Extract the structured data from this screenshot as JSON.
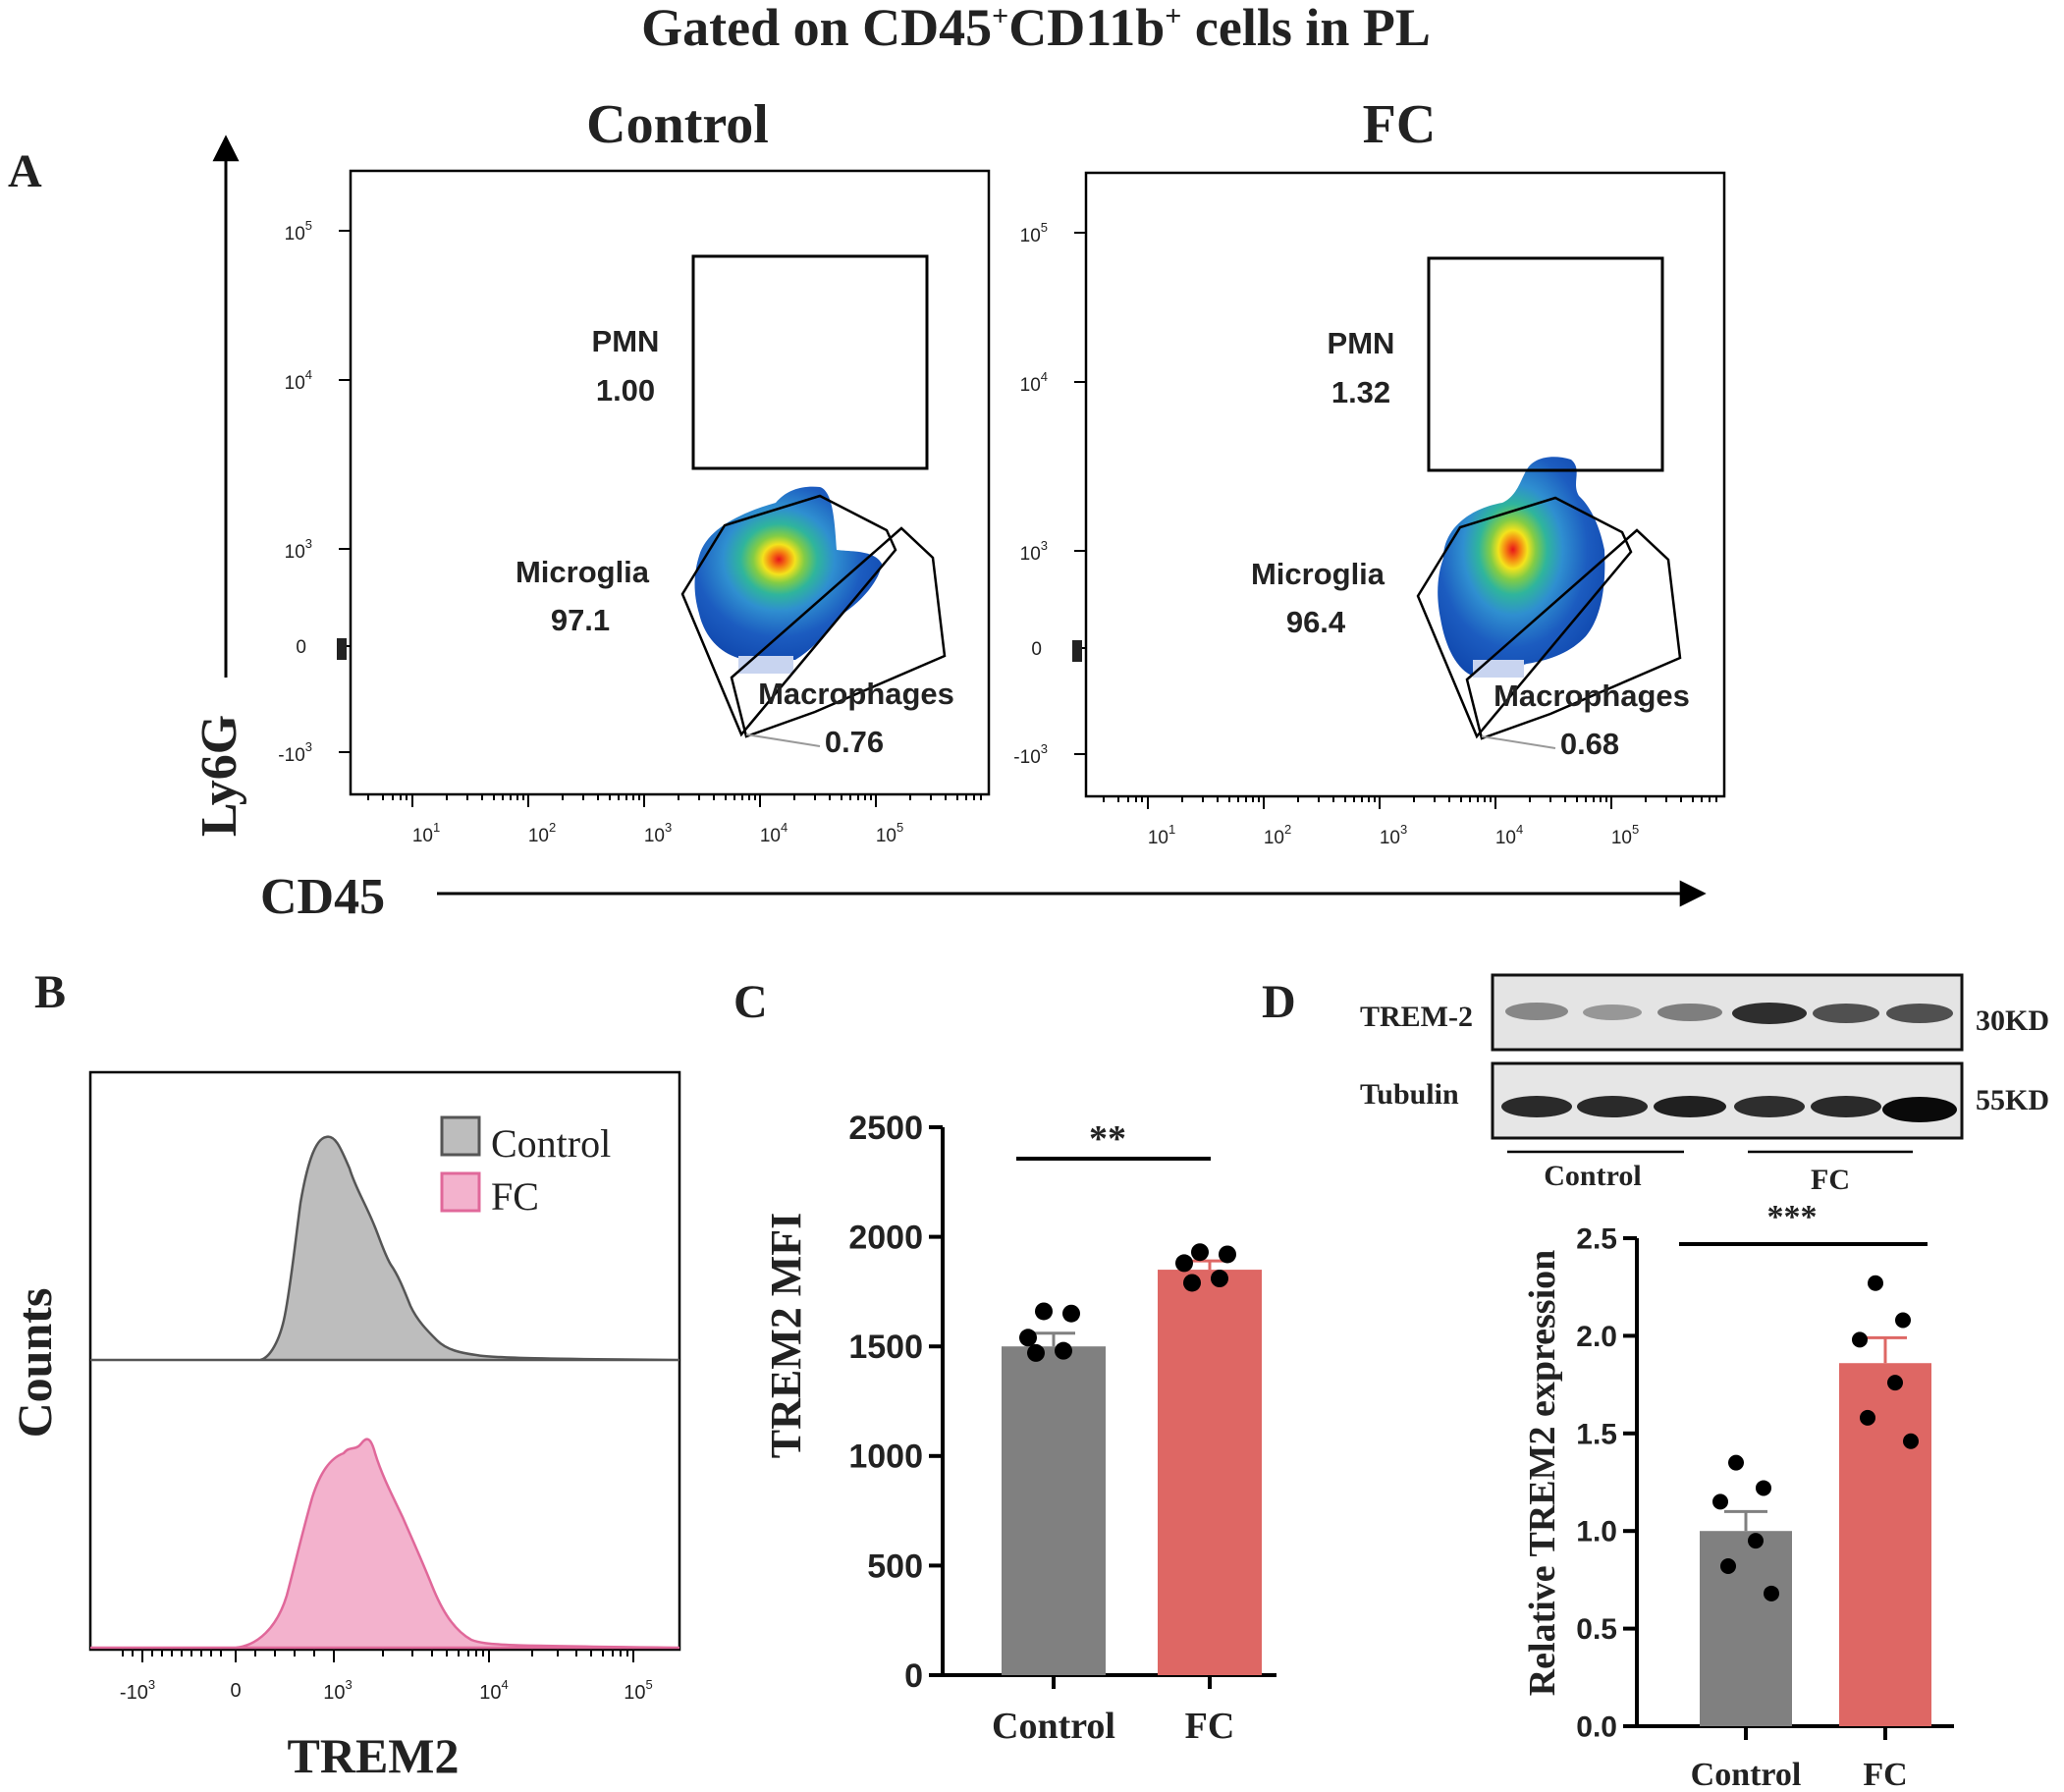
{
  "figure_title": "Gated on CD45+CD11b+ cells in PL",
  "title_parts": {
    "a": "Gated on CD45",
    "sup1": "+",
    "b": "CD11b",
    "sup2": "+",
    "c": " cells in PL"
  },
  "colors": {
    "control_bar": "#808080",
    "fc_bar": "#de6764",
    "control_hist_fill": "#bdbdbd",
    "control_hist_line": "#555555",
    "fc_hist_fill": "#f3b2cd",
    "fc_hist_line": "#e0689a"
  },
  "panel_a": {
    "label": "A",
    "x_axis_label": "CD45",
    "y_axis_label": "Ly6G",
    "x_ticks": [
      {
        "base": "10",
        "exp": "1"
      },
      {
        "base": "10",
        "exp": "2"
      },
      {
        "base": "10",
        "exp": "3"
      },
      {
        "base": "10",
        "exp": "4"
      },
      {
        "base": "10",
        "exp": "5"
      }
    ],
    "y_ticks": [
      {
        "sign": "",
        "base": "10",
        "exp": "5"
      },
      {
        "sign": "",
        "base": "10",
        "exp": "4"
      },
      {
        "sign": "",
        "base": "10",
        "exp": "3"
      },
      {
        "sign": "",
        "base": "0",
        "exp": ""
      },
      {
        "sign": "-",
        "base": "10",
        "exp": "3"
      }
    ],
    "plots": [
      {
        "title": "Control",
        "gates": [
          {
            "name": "PMN",
            "value": "1.00"
          },
          {
            "name": "Microglia",
            "value": "97.1"
          },
          {
            "name": "Macrophages",
            "value": "0.76"
          }
        ]
      },
      {
        "title": "FC",
        "gates": [
          {
            "name": "PMN",
            "value": "1.32"
          },
          {
            "name": "Microglia",
            "value": "96.4"
          },
          {
            "name": "Macrophages",
            "value": "0.68"
          }
        ]
      }
    ]
  },
  "panel_b": {
    "label": "B",
    "x_axis_label": "TREM2",
    "y_axis_label": "Counts",
    "x_ticks": [
      {
        "sign": "-",
        "base": "10",
        "exp": "3"
      },
      {
        "sign": "",
        "base": "0",
        "exp": ""
      },
      {
        "sign": "",
        "base": "10",
        "exp": "3"
      },
      {
        "sign": "",
        "base": "10",
        "exp": "4"
      },
      {
        "sign": "",
        "base": "10",
        "exp": "5"
      }
    ],
    "legend": [
      "Control",
      "FC"
    ]
  },
  "panel_c": {
    "label": "C",
    "significance": "**"
  },
  "panel_d": {
    "label": "D",
    "blot_rows": [
      {
        "name": "TREM-2",
        "size": "30KD"
      },
      {
        "name": "Tubulin",
        "size": "55KD"
      }
    ],
    "group_labels": [
      "Control",
      "FC"
    ],
    "significance": "***"
  },
  "chart_data": [
    {
      "id": "C",
      "type": "bar",
      "title": "",
      "categories": [
        "Control",
        "FC"
      ],
      "values": [
        1500,
        1850
      ],
      "errors": [
        60,
        40
      ],
      "points": [
        [
          1660,
          1650,
          1540,
          1480,
          1470
        ],
        [
          1930,
          1920,
          1880,
          1810,
          1790
        ]
      ],
      "xlabel": "",
      "ylabel": "TREM2 MFI",
      "ylim": [
        0,
        2500
      ],
      "yticks": [
        "0",
        "500",
        "1000",
        "1500",
        "2000",
        "2500"
      ],
      "ytick_values": [
        0,
        500,
        1000,
        1500,
        2000,
        2500
      ]
    },
    {
      "id": "D",
      "type": "bar",
      "title": "",
      "categories": [
        "Control",
        "FC"
      ],
      "values": [
        1.0,
        1.86
      ],
      "errors": [
        0.1,
        0.13
      ],
      "points": [
        [
          1.35,
          1.22,
          1.15,
          0.95,
          0.82,
          0.68
        ],
        [
          2.27,
          2.08,
          1.98,
          1.76,
          1.58,
          1.46
        ]
      ],
      "xlabel": "",
      "ylabel": "Relative TREM2 expression",
      "ylim": [
        0,
        2.5
      ],
      "yticks": [
        "0.0",
        "0.5",
        "1.0",
        "1.5",
        "2.0",
        "2.5"
      ],
      "ytick_values": [
        0,
        0.5,
        1.0,
        1.5,
        2.0,
        2.5
      ]
    }
  ]
}
